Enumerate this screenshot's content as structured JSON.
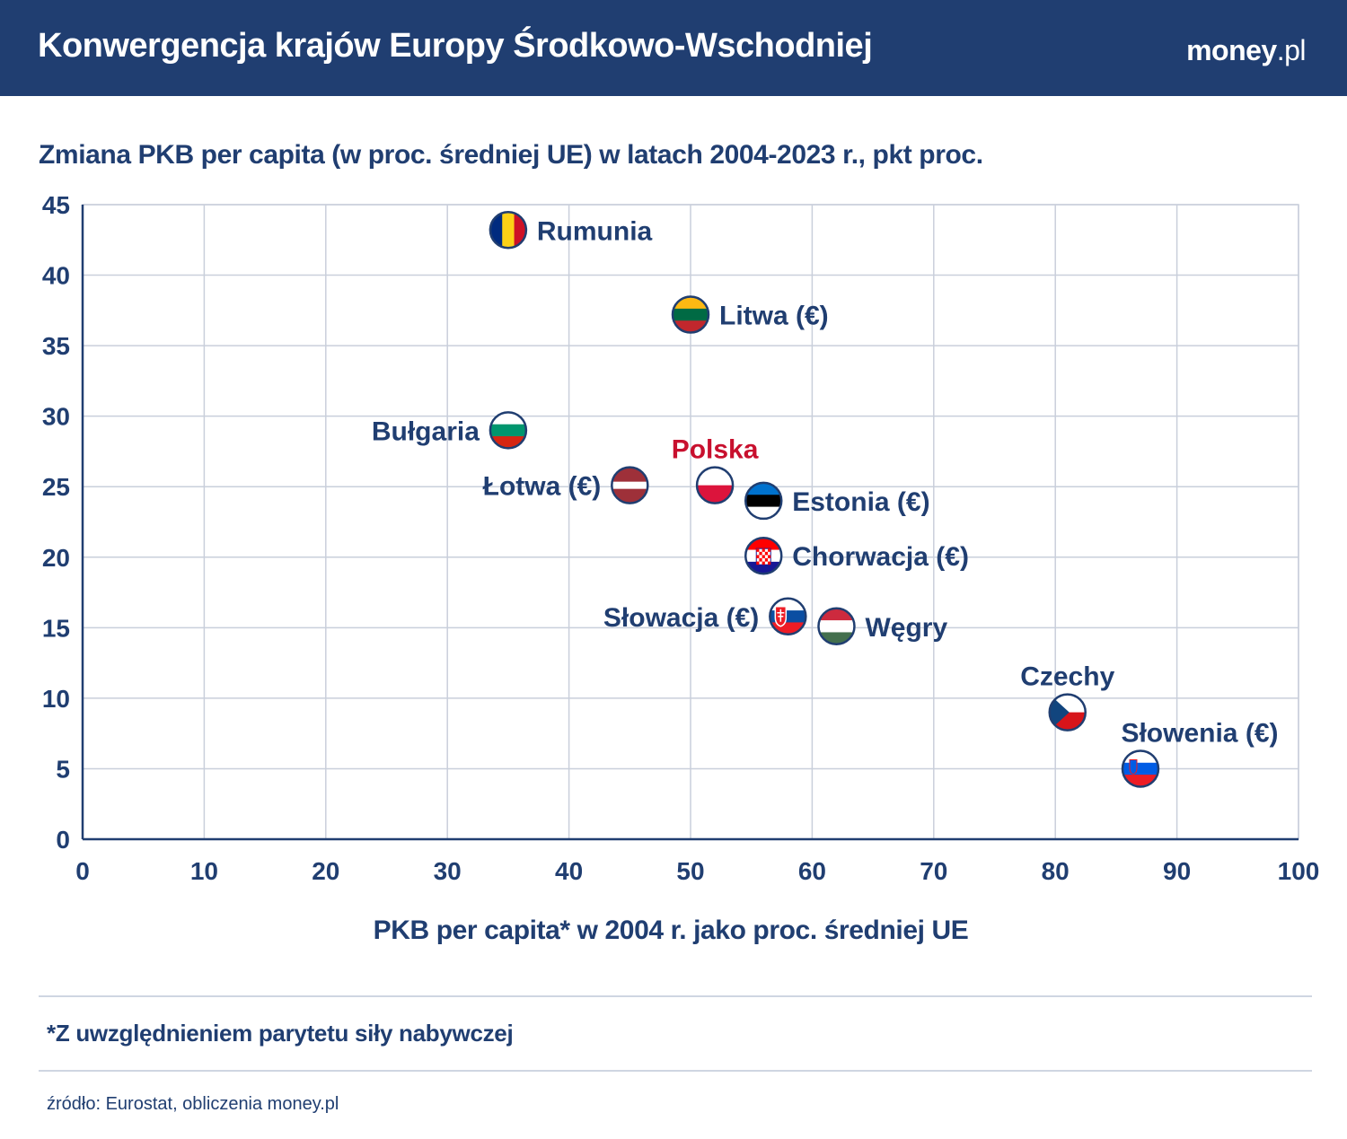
{
  "header": {
    "title": "Konwergencja krajów Europy Środkowo-Wschodniej",
    "brand_main": "money",
    "brand_suffix": ".pl"
  },
  "chart_data": {
    "type": "scatter",
    "title": "Zmiana PKB per capita (w proc. średniej UE) w latach 2004-2023 r., pkt proc.",
    "xlabel": "PKB per capita* w 2004 r. jako proc. średniej UE",
    "ylabel": "",
    "xlim": [
      0,
      100
    ],
    "ylim": [
      0,
      45
    ],
    "xticks": [
      0,
      10,
      20,
      30,
      40,
      50,
      60,
      70,
      80,
      90,
      100
    ],
    "yticks": [
      0,
      5,
      10,
      15,
      20,
      25,
      30,
      35,
      40,
      45
    ],
    "grid": true,
    "points": [
      {
        "label": "Rumunia",
        "x": 35,
        "y": 43.2,
        "flag": "romania-flag-icon",
        "label_pos": "right",
        "color": "#203e71"
      },
      {
        "label": "Litwa (€)",
        "x": 50,
        "y": 37.2,
        "flag": "lithuania-flag-icon",
        "label_pos": "right",
        "color": "#203e71"
      },
      {
        "label": "Bułgaria",
        "x": 35,
        "y": 29,
        "flag": "bulgaria-flag-icon",
        "label_pos": "left",
        "color": "#203e71"
      },
      {
        "label": "Polska",
        "x": 52,
        "y": 25.1,
        "flag": "poland-flag-icon",
        "label_pos": "top",
        "color": "#c8102e"
      },
      {
        "label": "Łotwa (€)",
        "x": 45,
        "y": 25.1,
        "flag": "latvia-flag-icon",
        "label_pos": "left",
        "color": "#203e71"
      },
      {
        "label": "Estonia (€)",
        "x": 56,
        "y": 24,
        "flag": "estonia-flag-icon",
        "label_pos": "right",
        "color": "#203e71"
      },
      {
        "label": "Chorwacja (€)",
        "x": 56,
        "y": 20.1,
        "flag": "croatia-flag-icon",
        "label_pos": "right",
        "color": "#203e71"
      },
      {
        "label": "Słowacja (€)",
        "x": 58,
        "y": 15.8,
        "flag": "slovakia-flag-icon",
        "label_pos": "left",
        "color": "#203e71"
      },
      {
        "label": "Węgry",
        "x": 62,
        "y": 15.1,
        "flag": "hungary-flag-icon",
        "label_pos": "right",
        "color": "#203e71"
      },
      {
        "label": "Czechy",
        "x": 81,
        "y": 9,
        "flag": "czech-flag-icon",
        "label_pos": "top",
        "color": "#203e71"
      },
      {
        "label": "Słowenia (€)",
        "x": 87,
        "y": 5,
        "flag": "slovenia-flag-icon",
        "label_pos": "top-right",
        "color": "#203e71"
      }
    ]
  },
  "footnote": "*Z uwzględnieniem parytetu siły nabywczej",
  "source": "źródło: Eurostat, obliczenia money.pl",
  "colors": {
    "header_bg": "#203e71",
    "text": "#203e71",
    "highlight": "#c8102e",
    "grid": "#c9cfdb"
  }
}
